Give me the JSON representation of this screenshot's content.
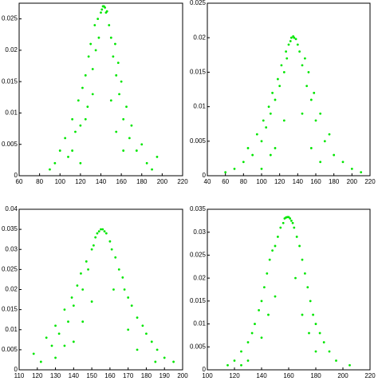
{
  "chart_data": [
    {
      "type": "scatter",
      "color": "#00e600",
      "x": [
        90,
        95,
        100,
        105,
        108,
        112,
        115,
        118,
        120,
        122,
        125,
        127,
        128,
        130,
        132,
        134,
        135,
        137,
        138,
        140,
        141,
        142,
        143,
        144,
        145,
        146,
        148,
        150,
        152,
        154,
        155,
        157,
        158,
        160,
        162,
        165,
        168,
        170,
        175,
        180,
        185,
        190,
        195,
        112,
        125,
        132,
        150,
        155,
        162,
        120
      ],
      "values": [
        0.001,
        0.002,
        0.004,
        0.006,
        0.003,
        0.009,
        0.007,
        0.012,
        0.008,
        0.014,
        0.016,
        0.011,
        0.019,
        0.021,
        0.017,
        0.024,
        0.02,
        0.025,
        0.022,
        0.026,
        0.0265,
        0.027,
        0.027,
        0.0268,
        0.026,
        0.0262,
        0.024,
        0.022,
        0.019,
        0.021,
        0.016,
        0.018,
        0.013,
        0.015,
        0.009,
        0.011,
        0.006,
        0.008,
        0.004,
        0.005,
        0.002,
        0.001,
        0.003,
        0.004,
        0.009,
        0.013,
        0.012,
        0.007,
        0.004,
        0.002
      ],
      "xlim": [
        60,
        220
      ],
      "xticks": [
        60,
        80,
        100,
        120,
        140,
        160,
        180,
        200,
        220
      ],
      "ylim": [
        0,
        0.0275
      ],
      "yticks": [
        0,
        0.005,
        0.01,
        0.015,
        0.02,
        0.025
      ]
    },
    {
      "type": "scatter",
      "color": "#00e600",
      "x": [
        60,
        70,
        80,
        85,
        90,
        95,
        100,
        102,
        105,
        108,
        110,
        112,
        115,
        118,
        120,
        122,
        125,
        127,
        128,
        130,
        132,
        133,
        135,
        136,
        138,
        140,
        142,
        145,
        148,
        150,
        152,
        155,
        158,
        160,
        165,
        170,
        175,
        180,
        190,
        200,
        210,
        100,
        115,
        125,
        145,
        155,
        165,
        110
      ],
      "values": [
        0.0005,
        0.001,
        0.002,
        0.004,
        0.003,
        0.006,
        0.005,
        0.008,
        0.007,
        0.01,
        0.009,
        0.012,
        0.011,
        0.014,
        0.013,
        0.016,
        0.015,
        0.018,
        0.017,
        0.019,
        0.0195,
        0.02,
        0.0202,
        0.02,
        0.0198,
        0.019,
        0.018,
        0.016,
        0.017,
        0.013,
        0.015,
        0.011,
        0.012,
        0.008,
        0.009,
        0.005,
        0.006,
        0.003,
        0.002,
        0.001,
        0.0005,
        0.001,
        0.004,
        0.008,
        0.009,
        0.004,
        0.002,
        0.003
      ],
      "xlim": [
        40,
        220
      ],
      "xticks": [
        40,
        60,
        80,
        100,
        120,
        140,
        160,
        180,
        200,
        220
      ],
      "ylim": [
        0,
        0.025
      ],
      "yticks": [
        0,
        0.005,
        0.01,
        0.015,
        0.02,
        0.025
      ]
    },
    {
      "type": "scatter",
      "color": "#00e600",
      "x": [
        118,
        122,
        125,
        128,
        130,
        132,
        135,
        137,
        139,
        140,
        142,
        144,
        145,
        147,
        148,
        150,
        151,
        152,
        153,
        154,
        155,
        156,
        157,
        158,
        160,
        161,
        163,
        165,
        167,
        168,
        170,
        172,
        175,
        178,
        180,
        183,
        186,
        190,
        195,
        130,
        140,
        145,
        150,
        162,
        170,
        175,
        185,
        135
      ],
      "values": [
        0.004,
        0.002,
        0.008,
        0.006,
        0.011,
        0.009,
        0.015,
        0.012,
        0.018,
        0.016,
        0.021,
        0.024,
        0.02,
        0.027,
        0.025,
        0.03,
        0.031,
        0.033,
        0.034,
        0.0345,
        0.035,
        0.035,
        0.0345,
        0.034,
        0.032,
        0.03,
        0.028,
        0.025,
        0.023,
        0.02,
        0.018,
        0.016,
        0.013,
        0.011,
        0.009,
        0.007,
        0.005,
        0.003,
        0.002,
        0.003,
        0.007,
        0.012,
        0.017,
        0.02,
        0.01,
        0.005,
        0.002,
        0.006
      ],
      "xlim": [
        110,
        200
      ],
      "xticks": [
        110,
        120,
        130,
        140,
        150,
        160,
        170,
        180,
        190,
        200
      ],
      "ylim": [
        0,
        0.04
      ],
      "yticks": [
        0,
        0.005,
        0.01,
        0.015,
        0.02,
        0.025,
        0.03,
        0.035,
        0.04
      ]
    },
    {
      "type": "scatter",
      "color": "#00e600",
      "x": [
        115,
        120,
        125,
        130,
        133,
        135,
        138,
        140,
        142,
        144,
        146,
        148,
        150,
        152,
        154,
        156,
        157,
        158,
        159,
        160,
        161,
        162,
        163,
        164,
        166,
        168,
        170,
        172,
        174,
        176,
        178,
        180,
        183,
        186,
        190,
        195,
        205,
        130,
        140,
        145,
        150,
        165,
        170,
        175,
        180,
        125
      ],
      "values": [
        0.001,
        0.002,
        0.004,
        0.006,
        0.008,
        0.01,
        0.013,
        0.015,
        0.018,
        0.021,
        0.024,
        0.026,
        0.027,
        0.029,
        0.031,
        0.032,
        0.033,
        0.0332,
        0.0333,
        0.0333,
        0.033,
        0.0325,
        0.032,
        0.031,
        0.029,
        0.027,
        0.024,
        0.021,
        0.018,
        0.015,
        0.012,
        0.01,
        0.008,
        0.006,
        0.004,
        0.002,
        0.001,
        0.002,
        0.007,
        0.012,
        0.016,
        0.02,
        0.012,
        0.008,
        0.004,
        0.001
      ],
      "xlim": [
        100,
        220
      ],
      "xticks": [
        100,
        120,
        140,
        160,
        180,
        200,
        220
      ],
      "ylim": [
        0,
        0.035
      ],
      "yticks": [
        0,
        0.005,
        0.01,
        0.015,
        0.02,
        0.025,
        0.03,
        0.035
      ]
    }
  ]
}
